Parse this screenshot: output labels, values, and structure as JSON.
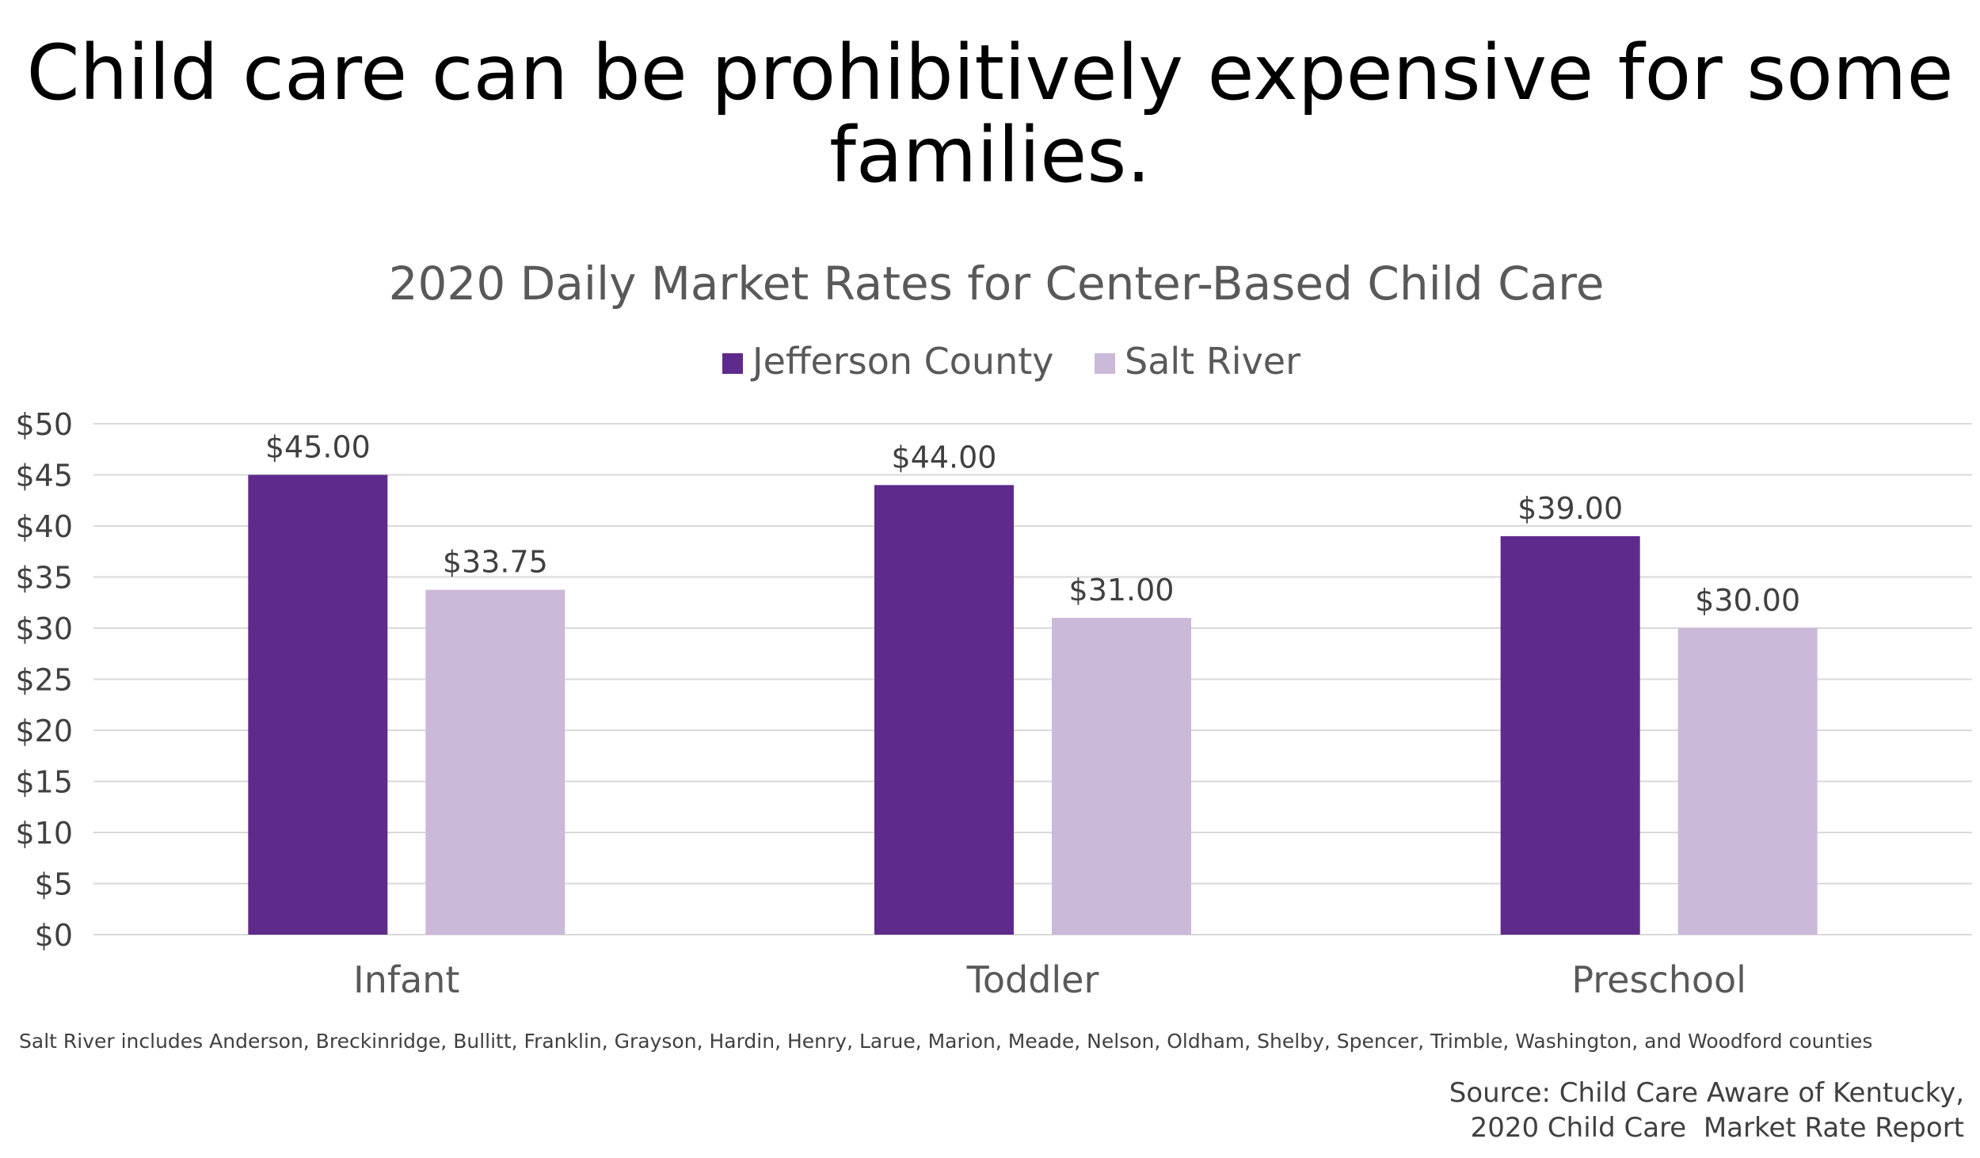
{
  "slide_title": "Child care can be prohibitively expensive for some families.",
  "note": "Salt River includes Anderson, Breckinridge, Bullitt, Franklin, Grayson, Hardin, Henry, Larue, Marion, Meade, Nelson, Oldham, Shelby, Spencer, Trimble, Washington, and Woodford counties",
  "source": {
    "line1": "Source: Child Care Aware of Kentucky,",
    "line2": "2020 Child Care  Market Rate Report"
  },
  "chart_data": {
    "type": "bar",
    "title": "2020 Daily Market Rates for Center-Based Child Care",
    "xlabel": "",
    "ylabel": "",
    "categories": [
      "Infant",
      "Toddler",
      "Preschool"
    ],
    "series": [
      {
        "name": "Jefferson County",
        "color": "#5e2b8c",
        "values": [
          45.0,
          44.0,
          39.0
        ],
        "labels": [
          "$45.00",
          "$44.00",
          "$39.00"
        ]
      },
      {
        "name": "Salt River",
        "color": "#cbb9d9",
        "values": [
          33.75,
          31.0,
          30.0
        ],
        "labels": [
          "$33.75",
          "$31.00",
          "$30.00"
        ]
      }
    ],
    "ylim": [
      0,
      50
    ],
    "yticks": [
      "$0",
      "$5",
      "$10",
      "$15",
      "$20",
      "$25",
      "$30",
      "$35",
      "$40",
      "$45",
      "$50"
    ],
    "grid": true,
    "legend_position": "top-center",
    "gridline_color": "#d9d9d9"
  }
}
